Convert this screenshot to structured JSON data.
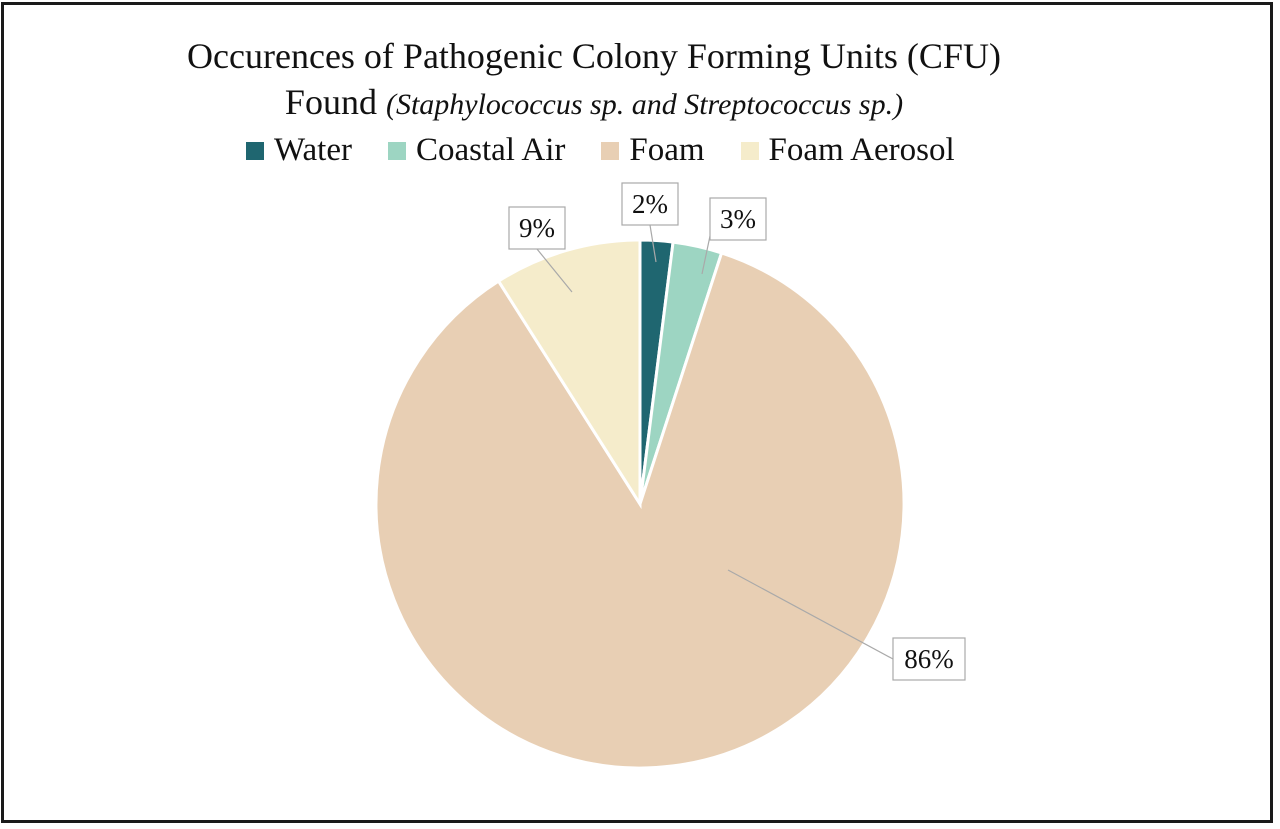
{
  "chart_data": {
    "type": "pie",
    "title": "Occurences of Pathogenic Colony Forming Units (CFU) Found",
    "title_line1": "Occurences of Pathogenic Colony Forming Units (CFU)",
    "title_line2_plain": "Found ",
    "title_line2_italic": "(Staphylococcus sp. and Streptococcus sp.)",
    "categories": [
      "Water",
      "Coastal Air",
      "Foam",
      "Foam Aerosol"
    ],
    "values": [
      2,
      3,
      86,
      9
    ],
    "labels": [
      "2%",
      "3%",
      "86%",
      "9%"
    ],
    "colors": [
      "#1f6670",
      "#9dd5c2",
      "#e8cfb4",
      "#f5eccb"
    ],
    "legend_position": "top",
    "start_angle_deg": 0,
    "direction": "clockwise"
  }
}
